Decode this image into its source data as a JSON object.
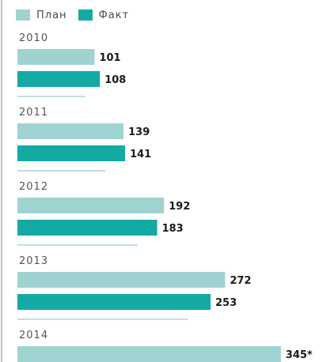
{
  "chart_data": {
    "type": "bar",
    "orientation": "horizontal",
    "categories": [
      "2010",
      "2011",
      "2012",
      "2013",
      "2014"
    ],
    "series": [
      {
        "name": "План",
        "color": "#9fd3d2",
        "values": [
          101,
          139,
          192,
          272,
          345
        ],
        "labels": [
          "101",
          "139",
          "192",
          "272",
          "345*"
        ]
      },
      {
        "name": "Факт",
        "color": "#14aaa4",
        "values": [
          108,
          141,
          183,
          253,
          null
        ],
        "labels": [
          "108",
          "141",
          "183",
          "253",
          ""
        ]
      }
    ],
    "legend": "top-left",
    "grid": false
  }
}
